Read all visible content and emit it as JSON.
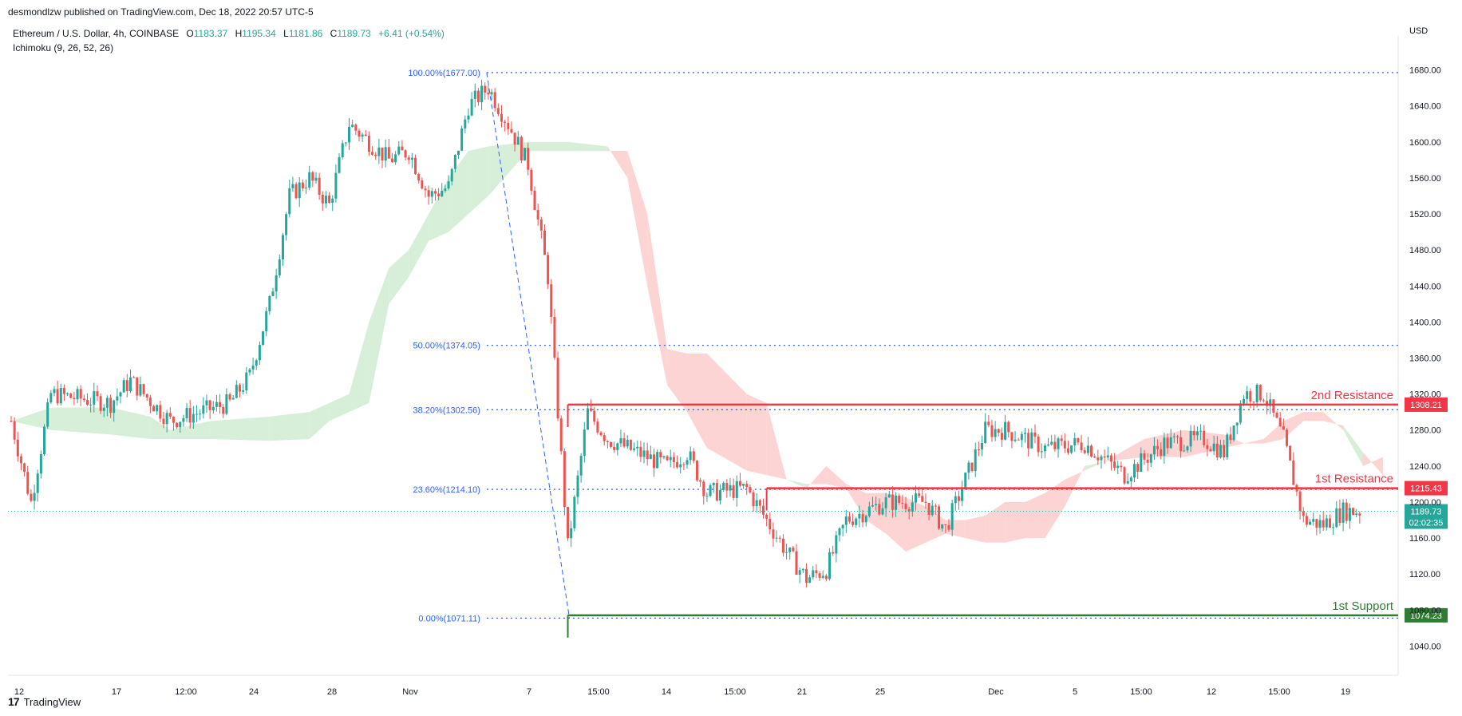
{
  "header": {
    "publisher": "desmondlzw published on TradingView.com, Dec 18, 2022 20:57 UTC-5",
    "symbol": "Ethereum / U.S. Dollar, 4h, COINBASE",
    "o_label": "O",
    "o_value": "1183.37",
    "h_label": "H",
    "h_value": "1195.34",
    "l_label": "L",
    "l_value": "1181.86",
    "c_label": "C",
    "c_value": "1189.73",
    "change": "+6.41 (+0.54%)",
    "indicator": "Ichimoku (9, 26, 52, 26)",
    "currency": "USD"
  },
  "footer": {
    "logo_mark": "17",
    "logo_text": "TradingView"
  },
  "colors": {
    "up": "#26a69a",
    "down": "#ef5350",
    "fib": "#2962ff",
    "resistance": "#f23645",
    "support": "#2e7d32",
    "cloud_green": "#d7efd9",
    "cloud_red": "#fcd4d3"
  },
  "chart_data": {
    "type": "candlestick",
    "timeframe": "4h",
    "ylim": [
      1020,
      1700
    ],
    "y_ticks": [
      1040,
      1080,
      1120,
      1160,
      1200,
      1240,
      1280,
      1320,
      1360,
      1400,
      1440,
      1480,
      1520,
      1560,
      1600,
      1640,
      1680
    ],
    "x_ticks": [
      "12",
      "17",
      "12:00",
      "24",
      "28",
      "Nov",
      "7",
      "15:00",
      "14",
      "15:00",
      "21",
      "25",
      "Dec",
      "5",
      "15:00",
      "12",
      "15:00",
      "19"
    ],
    "price_anchors": [
      [
        "2022-10-12",
        1290
      ],
      [
        "2022-10-13",
        1200
      ],
      [
        "2022-10-14",
        1320
      ],
      [
        "2022-10-17",
        1310
      ],
      [
        "2022-10-18",
        1335
      ],
      [
        "2022-10-20",
        1290
      ],
      [
        "2022-10-23",
        1310
      ],
      [
        "2022-10-24",
        1340
      ],
      [
        "2022-10-25",
        1420
      ],
      [
        "2022-10-26",
        1540
      ],
      [
        "2022-10-27",
        1560
      ],
      [
        "2022-10-28",
        1530
      ],
      [
        "2022-10-29",
        1620
      ],
      [
        "2022-10-30",
        1600
      ],
      [
        "2022-10-31",
        1580
      ],
      [
        "2022-11-01",
        1590
      ],
      [
        "2022-11-02",
        1540
      ],
      [
        "2022-11-03",
        1550
      ],
      [
        "2022-11-04",
        1640
      ],
      [
        "2022-11-05",
        1660
      ],
      [
        "2022-11-06",
        1620
      ],
      [
        "2022-11-07",
        1575
      ],
      [
        "2022-11-08",
        1450
      ],
      [
        "2022-11-09",
        1150
      ],
      [
        "2022-11-10",
        1300
      ],
      [
        "2022-11-11",
        1270
      ],
      [
        "2022-11-12",
        1260
      ],
      [
        "2022-11-14",
        1240
      ],
      [
        "2022-11-15",
        1255
      ],
      [
        "2022-11-16",
        1210
      ],
      [
        "2022-11-18",
        1215
      ],
      [
        "2022-11-20",
        1145
      ],
      [
        "2022-11-21",
        1115
      ],
      [
        "2022-11-22",
        1125
      ],
      [
        "2022-11-23",
        1180
      ],
      [
        "2022-11-25",
        1200
      ],
      [
        "2022-11-27",
        1200
      ],
      [
        "2022-11-28",
        1170
      ],
      [
        "2022-11-30",
        1280
      ],
      [
        "2022-12-01",
        1280
      ],
      [
        "2022-12-03",
        1260
      ],
      [
        "2022-12-05",
        1265
      ],
      [
        "2022-12-07",
        1230
      ],
      [
        "2022-12-09",
        1265
      ],
      [
        "2022-12-11",
        1270
      ],
      [
        "2022-12-12",
        1255
      ],
      [
        "2022-12-13",
        1320
      ],
      [
        "2022-12-14",
        1320
      ],
      [
        "2022-12-15",
        1270
      ],
      [
        "2022-12-16",
        1180
      ],
      [
        "2022-12-17",
        1175
      ],
      [
        "2022-12-18",
        1190
      ]
    ],
    "last_price": 1189.73,
    "countdown": "02:02:35",
    "fibonacci": {
      "from_date": "2022-11-05",
      "to_date": "2022-11-09",
      "levels": [
        {
          "label": "100.00%(1677.00)",
          "value": 1677.0
        },
        {
          "label": "50.00%(1374.05)",
          "value": 1374.05
        },
        {
          "label": "38.20%(1302.56)",
          "value": 1302.56
        },
        {
          "label": "23.60%(1214.10)",
          "value": 1214.1
        },
        {
          "label": "0.00%(1071.11)",
          "value": 1071.11
        }
      ]
    },
    "levels": [
      {
        "name": "2nd Resistance",
        "value": 1308.21,
        "price_label": "1308.21",
        "color": "#f23645",
        "start_date": "2022-11-09"
      },
      {
        "name": "1st Resistance",
        "value": 1215.43,
        "price_label": "1215.43",
        "color": "#f23645",
        "start_date": "2022-11-19"
      },
      {
        "name": "1st Support",
        "value": 1074.23,
        "price_label": "1074.23",
        "color": "#2e7d32",
        "start_date": "2022-11-09"
      }
    ],
    "ichimoku_cloud": [
      [
        "2022-10-12",
        1290,
        1290
      ],
      [
        "2022-10-14",
        1305,
        1280
      ],
      [
        "2022-10-17",
        1305,
        1275
      ],
      [
        "2022-10-19",
        1295,
        1270
      ],
      [
        "2022-10-20",
        1280,
        1270
      ],
      [
        "2022-10-22",
        1290,
        1270
      ],
      [
        "2022-10-25",
        1295,
        1268
      ],
      [
        "2022-10-27",
        1300,
        1270
      ],
      [
        "2022-10-28",
        1310,
        1290
      ],
      [
        "2022-10-29",
        1320,
        1300
      ],
      [
        "2022-10-30",
        1400,
        1310
      ],
      [
        "2022-10-31",
        1460,
        1420
      ],
      [
        "2022-11-01",
        1480,
        1450
      ],
      [
        "2022-11-02",
        1520,
        1490
      ],
      [
        "2022-11-03",
        1560,
        1500
      ],
      [
        "2022-11-04",
        1590,
        1520
      ],
      [
        "2022-11-05",
        1595,
        1540
      ],
      [
        "2022-11-07",
        1600,
        1590
      ],
      [
        "2022-11-09",
        1600,
        1590
      ],
      [
        "2022-11-11",
        1595,
        1590
      ],
      [
        "2022-11-12",
        1560,
        1590
      ],
      [
        "2022-11-13",
        1440,
        1520
      ],
      [
        "2022-11-14",
        1330,
        1370
      ],
      [
        "2022-11-15",
        1300,
        1365
      ],
      [
        "2022-11-16",
        1260,
        1365
      ],
      [
        "2022-11-18",
        1235,
        1320
      ],
      [
        "2022-11-19",
        1230,
        1310
      ],
      [
        "2022-11-20",
        1225,
        1225
      ],
      [
        "2022-11-21",
        1220,
        1215
      ],
      [
        "2022-11-22",
        1220,
        1240
      ],
      [
        "2022-11-23",
        1215,
        1220
      ],
      [
        "2022-11-24",
        1180,
        1210
      ],
      [
        "2022-11-25",
        1165,
        1210
      ],
      [
        "2022-11-26",
        1145,
        1205
      ],
      [
        "2022-11-27",
        1155,
        1195
      ],
      [
        "2022-11-28",
        1165,
        1180
      ],
      [
        "2022-11-29",
        1160,
        1180
      ],
      [
        "2022-11-30",
        1155,
        1185
      ],
      [
        "2022-12-01",
        1155,
        1200
      ],
      [
        "2022-12-02",
        1160,
        1200
      ],
      [
        "2022-12-03",
        1160,
        1210
      ],
      [
        "2022-12-04",
        1195,
        1225
      ],
      [
        "2022-12-05",
        1240,
        1235
      ],
      [
        "2022-12-06",
        1245,
        1245
      ],
      [
        "2022-12-08",
        1250,
        1270
      ],
      [
        "2022-12-10",
        1250,
        1280
      ],
      [
        "2022-12-12",
        1260,
        1275
      ],
      [
        "2022-12-13",
        1265,
        1265
      ],
      [
        "2022-12-14",
        1265,
        1270
      ],
      [
        "2022-12-15",
        1270,
        1290
      ],
      [
        "2022-12-16",
        1290,
        1300
      ],
      [
        "2022-12-17",
        1290,
        1300
      ],
      [
        "2022-12-18",
        1285,
        1280
      ],
      [
        "2022-12-19",
        1255,
        1240
      ],
      [
        "2022-12-20",
        1230,
        1250
      ]
    ]
  }
}
